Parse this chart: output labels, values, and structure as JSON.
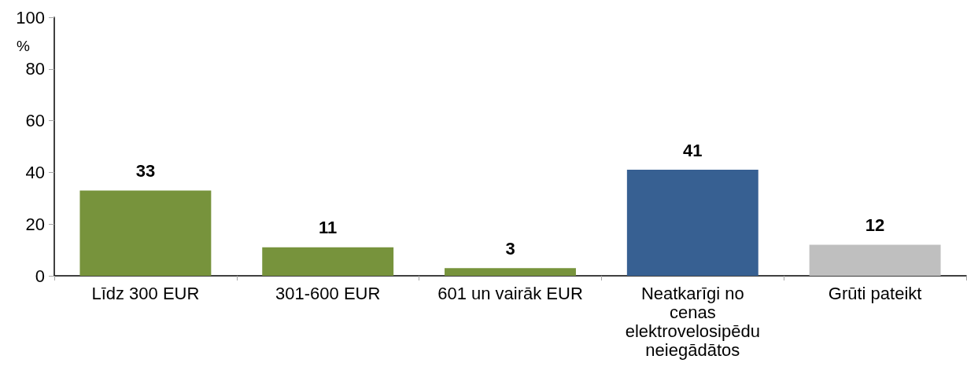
{
  "chart_data": {
    "type": "bar",
    "ylabel": "%",
    "categories": [
      "Līdz 300 EUR",
      "301-600 EUR",
      "601 un vairāk EUR",
      "Neatkarīgi no cenas elektrovelosipēdu neiegādātos",
      "Grūti pateikt"
    ],
    "values": [
      33,
      11,
      3,
      41,
      12
    ],
    "colors": [
      "#77933c",
      "#77933c",
      "#77933c",
      "#376092",
      "#bfbfbf"
    ],
    "ylim": [
      0,
      100
    ],
    "yticks": [
      0,
      20,
      40,
      60,
      80,
      100
    ],
    "data_labels": true,
    "grid": false
  }
}
